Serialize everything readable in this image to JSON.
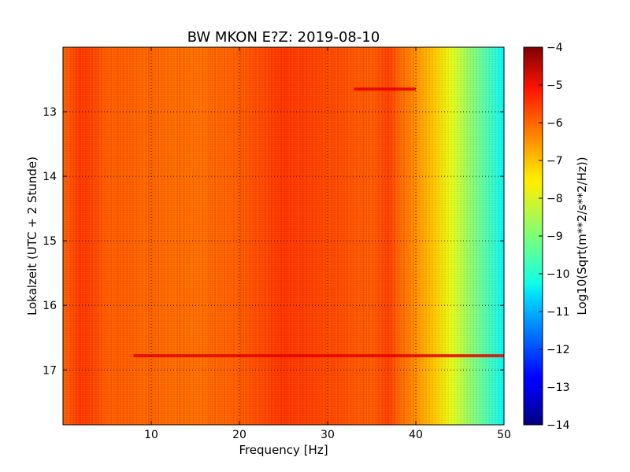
{
  "chart_data": {
    "type": "heatmap",
    "title": "BW MKON E?Z: 2019-08-10",
    "xlabel": "Frequency [Hz]",
    "ylabel": "Lokalzeit (UTC + 2 Stunde)",
    "xlim": [
      0,
      50
    ],
    "ylim": [
      17.85,
      12.0
    ],
    "xticks": [
      10,
      20,
      30,
      40,
      50
    ],
    "yticks": [
      13,
      14,
      15,
      16,
      17
    ],
    "grid": true,
    "colormap": "jet",
    "colorbar": {
      "label": "Log10(Sqrt(m**2/s**2/Hz))",
      "range": [
        -14,
        -4
      ],
      "ticks": [
        -4,
        -5,
        -6,
        -7,
        -8,
        -9,
        -10,
        -11,
        -12,
        -13,
        -14
      ]
    },
    "frequency_profile": {
      "frequency_hz": [
        0,
        2,
        5,
        10,
        15,
        20,
        25,
        30,
        35,
        37,
        38,
        40,
        42,
        44,
        46,
        48,
        50
      ],
      "log10_amplitude": [
        -6.3,
        -5.8,
        -6.2,
        -6.3,
        -6.4,
        -6.2,
        -5.8,
        -6.0,
        -6.2,
        -5.9,
        -6.3,
        -6.7,
        -7.2,
        -8.0,
        -8.8,
        -9.5,
        -10.3
      ]
    },
    "strong_bands": [
      {
        "time": 12.65,
        "freq_range": [
          33,
          40
        ],
        "log10_amplitude": -5.0
      },
      {
        "time": 16.78,
        "freq_range": [
          8,
          50
        ],
        "log10_amplitude": -5.0
      }
    ]
  }
}
